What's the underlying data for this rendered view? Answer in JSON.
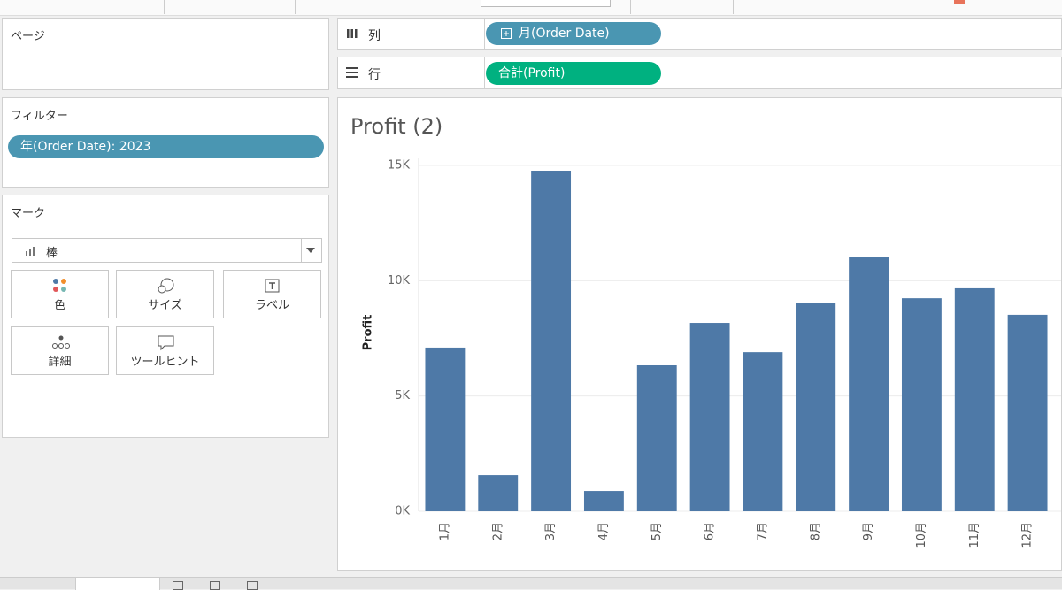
{
  "panels": {
    "pages": "ページ",
    "filters": {
      "title": "フィルター",
      "pill": "年(Order Date): 2023"
    },
    "marks": {
      "title": "マーク",
      "type": "棒",
      "buttons": [
        "色",
        "サイズ",
        "ラベル",
        "詳細",
        "ツールヒント"
      ]
    }
  },
  "shelves": {
    "columns": {
      "label": "列",
      "pill": "月(Order Date)"
    },
    "rows": {
      "label": "行",
      "pill": "合計(Profit)"
    }
  },
  "chart_data": {
    "type": "bar",
    "title": "Profit (2)",
    "y_label": "Profit",
    "categories": [
      "1月",
      "2月",
      "3月",
      "4月",
      "5月",
      "6月",
      "7月",
      "8月",
      "9月",
      "10月",
      "11月",
      "12月"
    ],
    "values": [
      7100,
      1570,
      14770,
      880,
      6330,
      8170,
      6900,
      9050,
      11010,
      9240,
      9670,
      8520
    ],
    "color": "#4e79a7",
    "ylim": [
      0,
      15000
    ],
    "yticks": [
      {
        "value": 0,
        "label": "0K"
      },
      {
        "value": 5000,
        "label": "5K"
      },
      {
        "value": 10000,
        "label": "10K"
      },
      {
        "value": 15000,
        "label": "15K"
      }
    ],
    "grid": true
  }
}
